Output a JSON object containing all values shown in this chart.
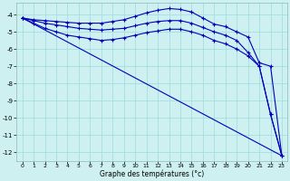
{
  "xlabel": "Graphe des températures (°c)",
  "background_color": "#cff0f0",
  "grid_color": "#99dddd",
  "line_color": "#0000bb",
  "xlim": [
    -0.5,
    23.5
  ],
  "ylim": [
    -12.5,
    -3.3
  ],
  "yticks": [
    -12,
    -11,
    -10,
    -9,
    -8,
    -7,
    -6,
    -5,
    -4
  ],
  "xticks": [
    0,
    1,
    2,
    3,
    4,
    5,
    6,
    7,
    8,
    9,
    10,
    11,
    12,
    13,
    14,
    15,
    16,
    17,
    18,
    19,
    20,
    21,
    22,
    23
  ],
  "series": {
    "line1_x": [
      0,
      1,
      2,
      3,
      4,
      5,
      6,
      7,
      8,
      9,
      10,
      11,
      12,
      13,
      14,
      15,
      16,
      17,
      18,
      19,
      20,
      21,
      22,
      23
    ],
    "line1_y": [
      -4.2,
      -4.3,
      -4.35,
      -4.4,
      -4.45,
      -4.5,
      -4.5,
      -4.5,
      -4.4,
      -4.3,
      -4.1,
      -3.9,
      -3.75,
      -3.65,
      -3.7,
      -3.85,
      -4.2,
      -4.55,
      -4.7,
      -5.0,
      -5.3,
      -6.8,
      -7.0,
      -12.2
    ],
    "line2_x": [
      0,
      1,
      2,
      3,
      4,
      5,
      6,
      7,
      8,
      9,
      10,
      11,
      12,
      13,
      14,
      15,
      16,
      17,
      18,
      19,
      20,
      21,
      22,
      23
    ],
    "line2_y": [
      -4.2,
      -4.35,
      -4.5,
      -4.6,
      -4.7,
      -4.8,
      -4.85,
      -4.9,
      -4.85,
      -4.8,
      -4.65,
      -4.5,
      -4.4,
      -4.35,
      -4.35,
      -4.5,
      -4.75,
      -5.0,
      -5.2,
      -5.5,
      -6.2,
      -7.0,
      -9.8,
      -12.2
    ],
    "line3_x": [
      0,
      1,
      2,
      3,
      4,
      5,
      6,
      7,
      8,
      9,
      10,
      11,
      12,
      13,
      14,
      15,
      16,
      17,
      18,
      19,
      20,
      21,
      22,
      23
    ],
    "line3_y": [
      -4.2,
      -4.5,
      -4.8,
      -5.0,
      -5.2,
      -5.3,
      -5.4,
      -5.5,
      -5.45,
      -5.35,
      -5.2,
      -5.05,
      -4.95,
      -4.85,
      -4.85,
      -5.0,
      -5.2,
      -5.5,
      -5.7,
      -6.0,
      -6.4,
      -7.0,
      -9.8,
      -12.2
    ],
    "line4_x": [
      0,
      23
    ],
    "line4_y": [
      -4.2,
      -12.2
    ]
  }
}
